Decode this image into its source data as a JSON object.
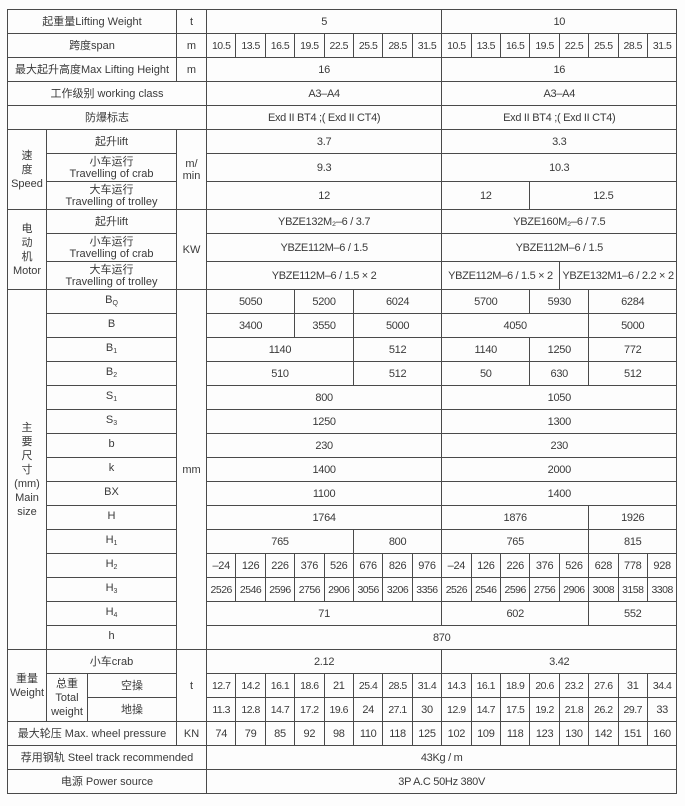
{
  "labels": {
    "lifting_weight": "起重量Lifting Weight",
    "span": "跨度span",
    "max_height": "最大起升高度Max Lifting Height",
    "working_class": "工作级别 working class",
    "explosion_mark": "防爆标志",
    "speed_group": [
      "速",
      "度",
      "Speed"
    ],
    "motor_group": [
      "电",
      "动",
      "机",
      "Motor"
    ],
    "lift": "起升lift",
    "crab_cn": "小车运行",
    "crab_en": "Travelling of crab",
    "trolley_cn": "大车运行",
    "trolley_en": "Travelling of trolley",
    "main_size_group": [
      "主",
      "要",
      "尺",
      "寸",
      "(mm)",
      "Main",
      "size"
    ],
    "dims": [
      {
        "base": "B",
        "sub": "Q"
      },
      {
        "base": "B",
        "sub": ""
      },
      {
        "base": "B",
        "sub": "1"
      },
      {
        "base": "B",
        "sub": "2"
      },
      {
        "base": "S",
        "sub": "1"
      },
      {
        "base": "S",
        "sub": "3"
      },
      {
        "base": "b",
        "sub": ""
      },
      {
        "base": "k",
        "sub": ""
      },
      {
        "base": "BX",
        "sub": ""
      },
      {
        "base": "H",
        "sub": ""
      },
      {
        "base": "H",
        "sub": "1"
      },
      {
        "base": "H",
        "sub": "2"
      },
      {
        "base": "H",
        "sub": "3"
      },
      {
        "base": "H",
        "sub": "4"
      },
      {
        "base": "h",
        "sub": ""
      }
    ],
    "weight_group": [
      "重量",
      "Weight"
    ],
    "crab_weight": "小车crab",
    "total_weight": [
      "总重",
      "Total",
      "weight"
    ],
    "cab_op": "空操",
    "ground_op": "地操",
    "wheel_pressure": "最大轮压 Max.  wheel pressure",
    "steel_track": "荐用钢轨 Steel track recommended",
    "power_source": "电源 Power source"
  },
  "units": {
    "t": "t",
    "m": "m",
    "m_min": "m/ min",
    "kw": "KW",
    "mm": "mm",
    "kn": "KN"
  },
  "rows": [
    [
      [
        "5",
        8
      ],
      [
        "10",
        8
      ]
    ],
    [
      [
        "10.5",
        1
      ],
      [
        "13.5",
        1
      ],
      [
        "16.5",
        1
      ],
      [
        "19.5",
        1
      ],
      [
        "22.5",
        1
      ],
      [
        "25.5",
        1
      ],
      [
        "28.5",
        1
      ],
      [
        "31.5",
        1
      ],
      [
        "10.5",
        1
      ],
      [
        "13.5",
        1
      ],
      [
        "16.5",
        1
      ],
      [
        "19.5",
        1
      ],
      [
        "22.5",
        1
      ],
      [
        "25.5",
        1
      ],
      [
        "28.5",
        1
      ],
      [
        "31.5",
        1
      ]
    ],
    [
      [
        "16",
        8
      ],
      [
        "16",
        8
      ]
    ],
    [
      [
        "A3–A4",
        8
      ],
      [
        "A3–A4",
        8
      ]
    ],
    [
      [
        "Exd II BT4 ;( Exd II CT4)",
        8
      ],
      [
        "Exd II BT4 ;( Exd II CT4)",
        8
      ]
    ],
    [
      [
        "3.7",
        8
      ],
      [
        "3.3",
        8
      ]
    ],
    [
      [
        "9.3",
        8
      ],
      [
        "10.3",
        8
      ]
    ],
    [
      [
        "12",
        8
      ],
      [
        "12",
        3
      ],
      [
        "12.5",
        5
      ]
    ],
    [
      [
        "YBZE132M₂–6 / 3.7",
        8
      ],
      [
        "YBZE160M₂–6 / 7.5",
        8
      ]
    ],
    [
      [
        "YBZE112M–6 / 1.5",
        8
      ],
      [
        "YBZE112M–6 / 1.5",
        8
      ]
    ],
    [
      [
        "YBZE112M–6 / 1.5 × 2",
        8
      ],
      [
        "YBZE112M–6 / 1.5 × 2",
        4
      ],
      [
        "YBZE132M1–6 / 2.2 × 2",
        4
      ]
    ],
    [
      [
        "5050",
        3
      ],
      [
        "5200",
        2
      ],
      [
        "6024",
        3
      ],
      [
        "5700",
        3
      ],
      [
        "5930",
        2
      ],
      [
        "6284",
        3
      ]
    ],
    [
      [
        "3400",
        3
      ],
      [
        "3550",
        2
      ],
      [
        "5000",
        3
      ],
      [
        "4050",
        5
      ],
      [
        "5000",
        3
      ]
    ],
    [
      [
        "1140",
        5
      ],
      [
        "512",
        3
      ],
      [
        "1140",
        3
      ],
      [
        "1250",
        2
      ],
      [
        "772",
        3
      ]
    ],
    [
      [
        "510",
        5
      ],
      [
        "512",
        3
      ],
      [
        "50",
        3
      ],
      [
        "630",
        2
      ],
      [
        "512",
        3
      ]
    ],
    [
      [
        "800",
        8
      ],
      [
        "1050",
        8
      ]
    ],
    [
      [
        "1250",
        8
      ],
      [
        "1300",
        8
      ]
    ],
    [
      [
        "230",
        8
      ],
      [
        "230",
        8
      ]
    ],
    [
      [
        "1400",
        8
      ],
      [
        "2000",
        8
      ]
    ],
    [
      [
        "1100",
        8
      ],
      [
        "1400",
        8
      ]
    ],
    [
      [
        "1764",
        8
      ],
      [
        "1876",
        5
      ],
      [
        "1926",
        3
      ]
    ],
    [
      [
        "765",
        5
      ],
      [
        "800",
        3
      ],
      [
        "765",
        5
      ],
      [
        "815",
        3
      ]
    ],
    [
      [
        "–24",
        1
      ],
      [
        "126",
        1
      ],
      [
        "226",
        1
      ],
      [
        "376",
        1
      ],
      [
        "526",
        1
      ],
      [
        "676",
        1
      ],
      [
        "826",
        1
      ],
      [
        "976",
        1
      ],
      [
        "–24",
        1
      ],
      [
        "126",
        1
      ],
      [
        "226",
        1
      ],
      [
        "376",
        1
      ],
      [
        "526",
        1
      ],
      [
        "628",
        1
      ],
      [
        "778",
        1
      ],
      [
        "928",
        1
      ]
    ],
    [
      [
        "2526",
        1
      ],
      [
        "2546",
        1
      ],
      [
        "2596",
        1
      ],
      [
        "2756",
        1
      ],
      [
        "2906",
        1
      ],
      [
        "3056",
        1
      ],
      [
        "3206",
        1
      ],
      [
        "3356",
        1
      ],
      [
        "2526",
        1
      ],
      [
        "2546",
        1
      ],
      [
        "2596",
        1
      ],
      [
        "2756",
        1
      ],
      [
        "2906",
        1
      ],
      [
        "3008",
        1
      ],
      [
        "3158",
        1
      ],
      [
        "3308",
        1
      ]
    ],
    [
      [
        "71",
        8
      ],
      [
        "602",
        5
      ],
      [
        "552",
        3
      ]
    ],
    [
      [
        "870",
        16
      ]
    ],
    [
      [
        "2.12",
        8
      ],
      [
        "3.42",
        8
      ]
    ],
    [
      [
        "12.7",
        1
      ],
      [
        "14.2",
        1
      ],
      [
        "16.1",
        1
      ],
      [
        "18.6",
        1
      ],
      [
        "21",
        1
      ],
      [
        "25.4",
        1
      ],
      [
        "28.5",
        1
      ],
      [
        "31.4",
        1
      ],
      [
        "14.3",
        1
      ],
      [
        "16.1",
        1
      ],
      [
        "18.9",
        1
      ],
      [
        "20.6",
        1
      ],
      [
        "23.2",
        1
      ],
      [
        "27.6",
        1
      ],
      [
        "31",
        1
      ],
      [
        "34.4",
        1
      ]
    ],
    [
      [
        "11.3",
        1
      ],
      [
        "12.8",
        1
      ],
      [
        "14.7",
        1
      ],
      [
        "17.2",
        1
      ],
      [
        "19.6",
        1
      ],
      [
        "24",
        1
      ],
      [
        "27.1",
        1
      ],
      [
        "30",
        1
      ],
      [
        "12.9",
        1
      ],
      [
        "14.7",
        1
      ],
      [
        "17.5",
        1
      ],
      [
        "19.2",
        1
      ],
      [
        "21.8",
        1
      ],
      [
        "26.2",
        1
      ],
      [
        "29.7",
        1
      ],
      [
        "33",
        1
      ]
    ],
    [
      [
        "74",
        1
      ],
      [
        "79",
        1
      ],
      [
        "85",
        1
      ],
      [
        "92",
        1
      ],
      [
        "98",
        1
      ],
      [
        "110",
        1
      ],
      [
        "118",
        1
      ],
      [
        "125",
        1
      ],
      [
        "102",
        1
      ],
      [
        "109",
        1
      ],
      [
        "118",
        1
      ],
      [
        "123",
        1
      ],
      [
        "130",
        1
      ],
      [
        "142",
        1
      ],
      [
        "151",
        1
      ],
      [
        "160",
        1
      ]
    ],
    [
      [
        "43Kg / m",
        16
      ]
    ],
    [
      [
        "3P    A.C    50Hz    380V",
        16
      ]
    ]
  ]
}
